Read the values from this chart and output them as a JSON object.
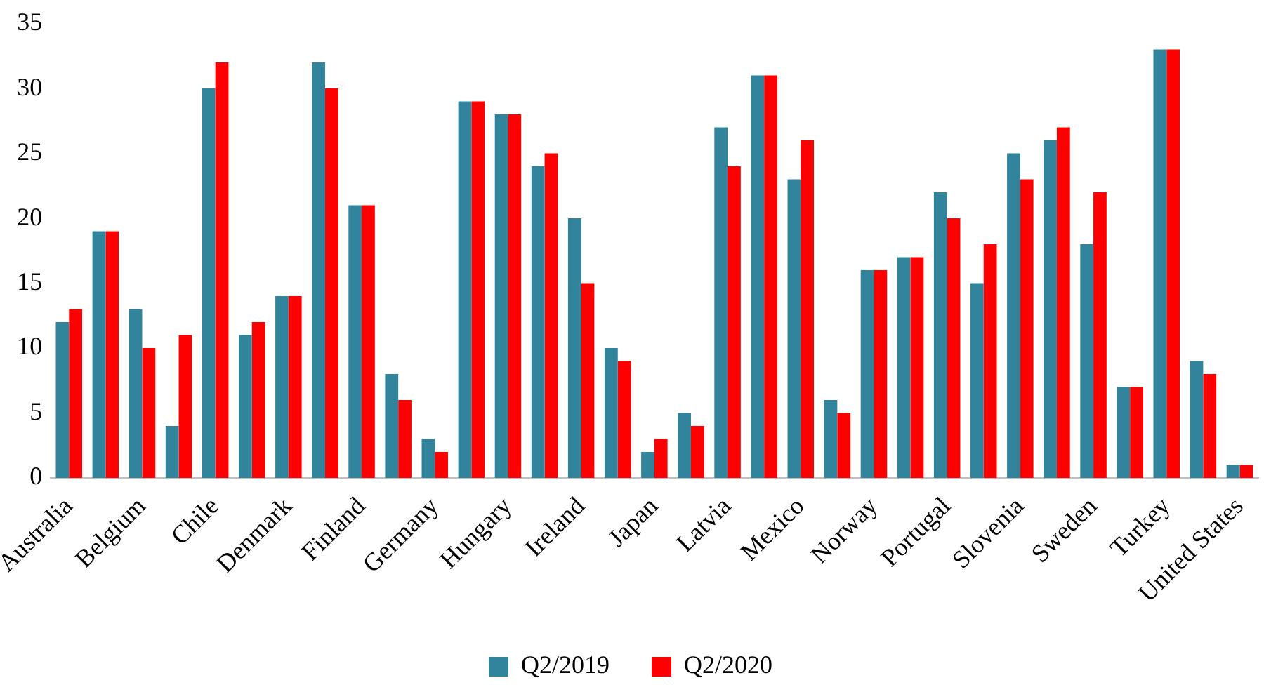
{
  "chart_data": {
    "type": "bar",
    "categories": [
      "Australia",
      null,
      "Belgium",
      null,
      "Chile",
      null,
      "Denmark",
      null,
      "Finland",
      null,
      "Germany",
      null,
      "Hungary",
      null,
      "Ireland",
      null,
      "Japan",
      null,
      "Latvia",
      null,
      "Mexico",
      null,
      "Norway",
      null,
      "Portugal",
      null,
      "Slovenia",
      null,
      "Sweden",
      null,
      "Turkey",
      null,
      "United States"
    ],
    "series": [
      {
        "name": "Q2/2019",
        "color": "#31849b",
        "values": [
          12,
          19,
          13,
          4,
          30,
          11,
          14,
          32,
          21,
          8,
          3,
          29,
          28,
          24,
          20,
          10,
          2,
          5,
          27,
          31,
          23,
          6,
          16,
          17,
          22,
          15,
          25,
          26,
          18,
          7,
          33,
          9,
          1
        ]
      },
      {
        "name": "Q2/2020",
        "color": "#ff0000",
        "values": [
          13,
          19,
          10,
          11,
          32,
          12,
          14,
          30,
          21,
          6,
          2,
          29,
          28,
          25,
          15,
          9,
          3,
          4,
          24,
          31,
          26,
          5,
          16,
          17,
          20,
          18,
          23,
          27,
          22,
          7,
          33,
          8,
          1
        ]
      }
    ],
    "ylim": [
      0,
      35
    ],
    "yticks": [
      0,
      5,
      10,
      15,
      20,
      25,
      30,
      35
    ],
    "grid": false,
    "legend": "bottom"
  }
}
